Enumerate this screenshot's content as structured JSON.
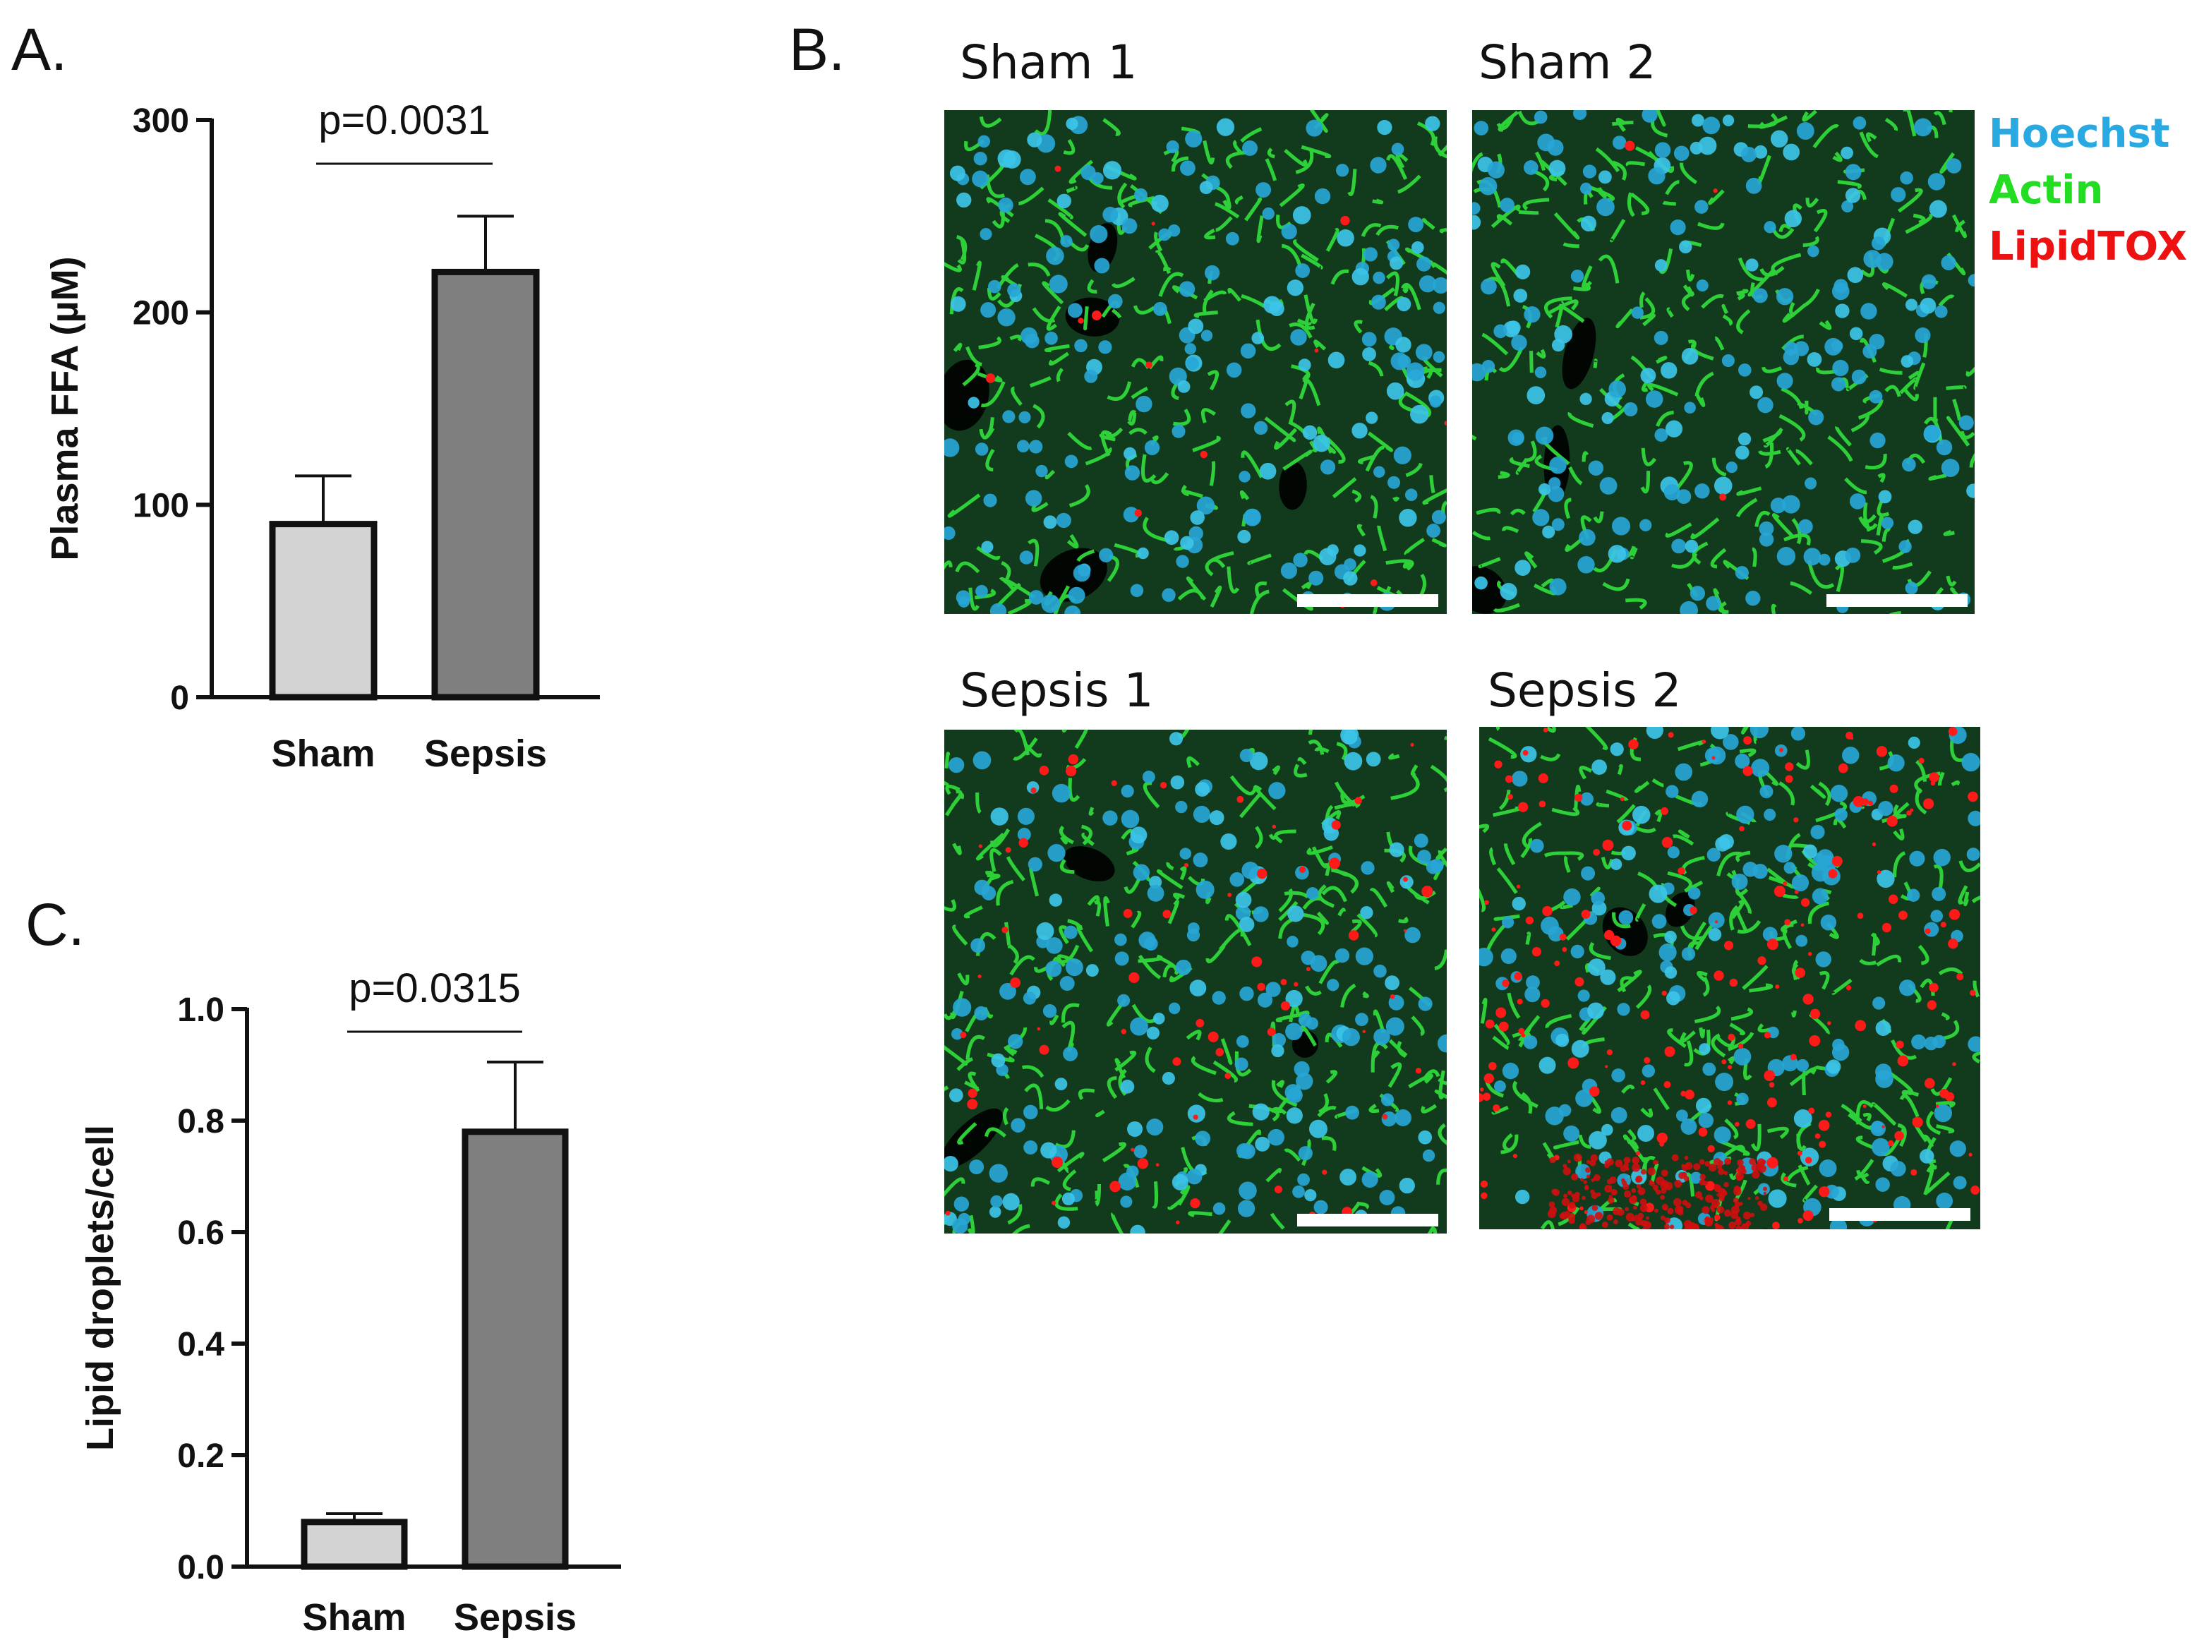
{
  "panels": {
    "a": {
      "letter": "A."
    },
    "b": {
      "letter": "B."
    },
    "c": {
      "letter": "C."
    }
  },
  "chart_data": [
    {
      "id": "ffa",
      "type": "bar",
      "categories": [
        "Sham",
        "Sepsis"
      ],
      "values": [
        90,
        221
      ],
      "error_upper": [
        115,
        250
      ],
      "bar_colors": [
        "#d3d3d3",
        "#7f7f7f"
      ],
      "ylabel": "Plasma FFA (µM)",
      "ylim": [
        0,
        300
      ],
      "yticks": [
        0,
        100,
        200,
        300
      ],
      "ytick_labels": [
        "0",
        "100",
        "200",
        "300"
      ],
      "annotation": "p=0.0031",
      "grid": false
    },
    {
      "id": "lipid",
      "type": "bar",
      "categories": [
        "Sham",
        "Sepsis"
      ],
      "values": [
        0.08,
        0.78
      ],
      "error_upper": [
        0.095,
        0.905
      ],
      "bar_colors": [
        "#d3d3d3",
        "#7f7f7f"
      ],
      "ylabel": "Lipid droplets/cell",
      "ylim": [
        0,
        1.0
      ],
      "yticks": [
        0,
        0.2,
        0.4,
        0.6,
        0.8,
        1.0
      ],
      "ytick_labels": [
        "0.0",
        "0.2",
        "0.4",
        "0.6",
        "0.8",
        "1.0"
      ],
      "annotation": "p=0.0315",
      "grid": false
    }
  ],
  "micrographs": [
    {
      "title": "Sham 1",
      "lipid_level": 0.05
    },
    {
      "title": "Sham 2",
      "lipid_level": 0.01
    },
    {
      "title": "Sepsis 1",
      "lipid_level": 0.25
    },
    {
      "title": "Sepsis 2",
      "lipid_level": 0.7
    }
  ],
  "legend": [
    {
      "label": "Hoechst",
      "color": "#29a9e1"
    },
    {
      "label": "Actin",
      "color": "#22dd22"
    },
    {
      "label": "LipidTOX",
      "color": "#ee1111"
    }
  ]
}
